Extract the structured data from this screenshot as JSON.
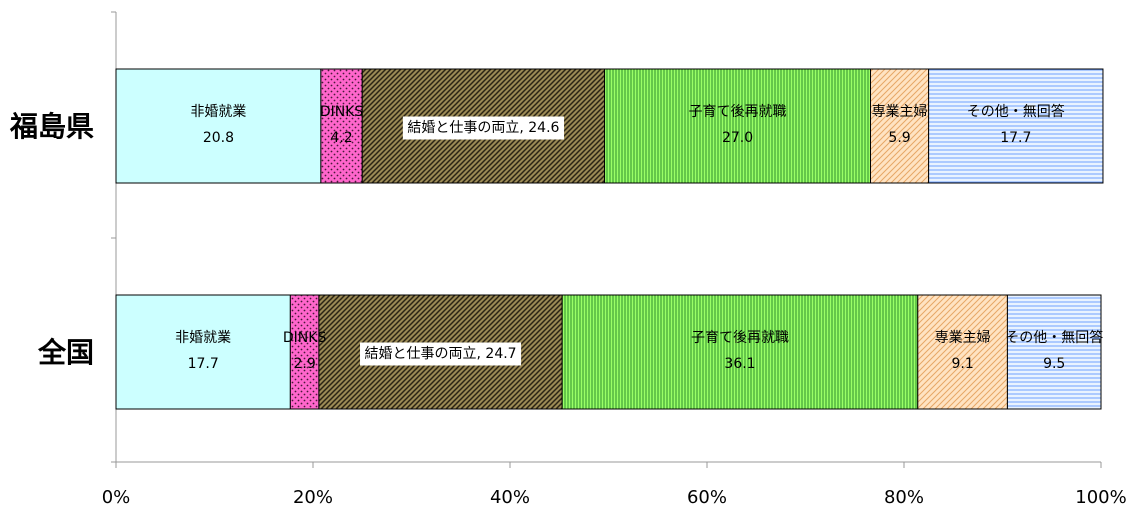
{
  "chart_data": {
    "type": "bar",
    "orientation": "horizontal",
    "stacked": "percent",
    "categories": [
      "福島県",
      "全国"
    ],
    "series": [
      {
        "name": "非婚就業",
        "values": [
          20.8,
          17.7
        ],
        "color": "#ccffff",
        "pattern": "solid"
      },
      {
        "name": "DINKS",
        "values": [
          4.2,
          2.9
        ],
        "color": "#ff66cc",
        "pattern": "dots"
      },
      {
        "name": "結婚と仕事の両立",
        "values": [
          24.6,
          24.7
        ],
        "color": "#807040",
        "pattern": "diag"
      },
      {
        "name": "子育て後再就職",
        "values": [
          27.0,
          36.1
        ],
        "color": "#99ff66",
        "pattern": "vlines"
      },
      {
        "name": "専業主婦",
        "values": [
          5.9,
          9.1
        ],
        "color": "#ffcc99",
        "pattern": "diag-light"
      },
      {
        "name": "その他・無回答",
        "values": [
          17.7,
          9.5
        ],
        "color": "#cce0ff",
        "pattern": "hlines"
      }
    ],
    "data_labels": [
      [
        {
          "name": "非婚就業",
          "value": "20.8",
          "style": "two-line"
        },
        {
          "name": "DINKS",
          "value": "4.2",
          "style": "two-line"
        },
        {
          "name": "結婚と仕事の両立, 24.6",
          "value": "",
          "style": "boxed"
        },
        {
          "name": "子育て後再就職",
          "value": "27.0",
          "style": "two-line"
        },
        {
          "name": "専業主婦",
          "value": "5.9",
          "style": "two-line"
        },
        {
          "name": "その他・無回答",
          "value": "17.7",
          "style": "two-line"
        }
      ],
      [
        {
          "name": "非婚就業",
          "value": "17.7",
          "style": "two-line"
        },
        {
          "name": "DINKS",
          "value": "2.9",
          "style": "two-line"
        },
        {
          "name": "結婚と仕事の両立, 24.7",
          "value": "",
          "style": "boxed"
        },
        {
          "name": "子育て後再就職",
          "value": "36.1",
          "style": "two-line"
        },
        {
          "name": "専業主婦",
          "value": "9.1",
          "style": "two-line"
        },
        {
          "name": "その他・無回答",
          "value": "9.5",
          "style": "two-line"
        }
      ]
    ],
    "x_ticks": [
      "0%",
      "20%",
      "40%",
      "60%",
      "80%",
      "100%"
    ],
    "xlim": [
      0,
      100
    ],
    "title": "",
    "xlabel": "",
    "ylabel": "",
    "grid": false,
    "legend": "none"
  }
}
